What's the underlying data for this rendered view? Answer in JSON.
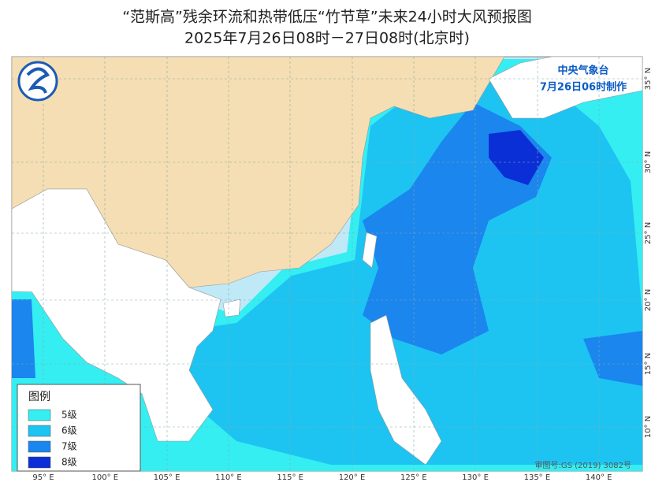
{
  "header": {
    "title": "“范斯高”残余环流和热带低压“竹节草”未来24小时大风预报图",
    "subtitle": "2025年7月26日08时－27日08时(北京时)"
  },
  "issuer": {
    "name": "中央气象台",
    "time": "7月26日06时制作"
  },
  "legend": {
    "title": "图例",
    "items": [
      {
        "label": "5级",
        "color": "#34eef2"
      },
      {
        "label": "6级",
        "color": "#1dc4f2"
      },
      {
        "label": "7级",
        "color": "#1a86ee"
      },
      {
        "label": "8级",
        "color": "#0a2fd6"
      }
    ]
  },
  "longitudes": [
    "95° E",
    "100° E",
    "105° E",
    "110° E",
    "115° E",
    "120° E",
    "125° E",
    "130° E",
    "135° E",
    "140° E"
  ],
  "latitudes": [
    "35° N",
    "30° N",
    "25° N",
    "20° N",
    "15° N",
    "10° N"
  ],
  "approval": "审图号:GS (2019) 3082号"
}
